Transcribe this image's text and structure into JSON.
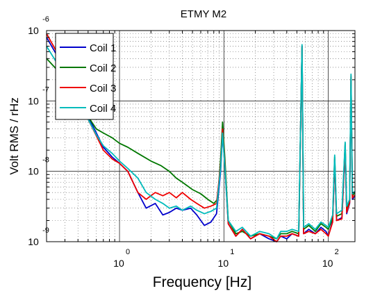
{
  "chart_data": {
    "type": "line",
    "title": "ETMY M2",
    "xlabel": "Frequency [Hz]",
    "ylabel": "Volt RMS / rHz",
    "x_scale": "log",
    "y_scale": "log",
    "xlim": [
      0.2,
      180
    ],
    "ylim": [
      1e-09,
      1e-06
    ],
    "grid": true,
    "legend": "top-left",
    "x_ticks": [
      {
        "value": 1,
        "base": "10",
        "exp": "0"
      },
      {
        "value": 10,
        "base": "10",
        "exp": "1"
      },
      {
        "value": 100,
        "base": "10",
        "exp": "2"
      }
    ],
    "y_ticks": [
      {
        "value": 1e-09,
        "base": "10",
        "exp": "-9"
      },
      {
        "value": 1e-08,
        "base": "10",
        "exp": "-8"
      },
      {
        "value": 1e-07,
        "base": "10",
        "exp": "-7"
      },
      {
        "value": 1e-06,
        "base": "10",
        "exp": "-6"
      }
    ],
    "series": [
      {
        "name": "Coil 1",
        "color": "#0000cc",
        "points": [
          [
            0.2,
            8e-07
          ],
          [
            0.25,
            4.5e-07
          ],
          [
            0.3,
            2.5e-07
          ],
          [
            0.4,
            1.2e-07
          ],
          [
            0.5,
            6e-08
          ],
          [
            0.6,
            3.5e-08
          ],
          [
            0.7,
            2.2e-08
          ],
          [
            0.85,
            1.6e-08
          ],
          [
            1.0,
            1.3e-08
          ],
          [
            1.2,
            1e-08
          ],
          [
            1.5,
            5e-09
          ],
          [
            1.8,
            3e-09
          ],
          [
            2.2,
            3.5e-09
          ],
          [
            2.6,
            2.4e-09
          ],
          [
            3.0,
            2.6e-09
          ],
          [
            3.5,
            3e-09
          ],
          [
            4.0,
            2.8e-09
          ],
          [
            4.8,
            3e-09
          ],
          [
            5.5,
            2.4e-09
          ],
          [
            6.5,
            1.7e-09
          ],
          [
            7.5,
            1.9e-09
          ],
          [
            8.5,
            2.5e-09
          ],
          [
            9.3,
            1e-08
          ],
          [
            9.7,
            3.5e-08
          ],
          [
            10.2,
            1.2e-08
          ],
          [
            11,
            1.8e-09
          ],
          [
            13,
            1.2e-09
          ],
          [
            15,
            1.5e-09
          ],
          [
            18,
            1.1e-09
          ],
          [
            22,
            1.3e-09
          ],
          [
            27,
            1.1e-09
          ],
          [
            32,
            1e-09
          ],
          [
            35,
            1.2e-09
          ],
          [
            40,
            1.1e-09
          ],
          [
            45,
            1.3e-09
          ],
          [
            52,
            1.2e-09
          ],
          [
            56,
            6e-07
          ],
          [
            58,
            1.3e-09
          ],
          [
            65,
            1.5e-09
          ],
          [
            75,
            1.3e-09
          ],
          [
            85,
            1.6e-09
          ],
          [
            95,
            1.4e-09
          ],
          [
            100,
            1.2e-09
          ],
          [
            110,
            2e-09
          ],
          [
            115,
            1.4e-08
          ],
          [
            120,
            2e-09
          ],
          [
            135,
            2.2e-09
          ],
          [
            145,
            2.1e-08
          ],
          [
            150,
            2.5e-09
          ],
          [
            160,
            3.5e-09
          ],
          [
            165,
            2e-07
          ],
          [
            170,
            4e-09
          ],
          [
            180,
            4.5e-09
          ]
        ]
      },
      {
        "name": "Coil 2",
        "color": "#007700",
        "points": [
          [
            0.2,
            4e-07
          ],
          [
            0.25,
            2.8e-07
          ],
          [
            0.3,
            1.8e-07
          ],
          [
            0.4,
            1e-07
          ],
          [
            0.5,
            6e-08
          ],
          [
            0.6,
            4e-08
          ],
          [
            0.7,
            3.5e-08
          ],
          [
            0.85,
            3e-08
          ],
          [
            1.0,
            2.5e-08
          ],
          [
            1.2,
            2.2e-08
          ],
          [
            1.5,
            1.8e-08
          ],
          [
            2.0,
            1.4e-08
          ],
          [
            2.5,
            1.2e-08
          ],
          [
            3.0,
            1e-08
          ],
          [
            3.5,
            8e-09
          ],
          [
            4.0,
            7e-09
          ],
          [
            5.0,
            5.5e-09
          ],
          [
            6.0,
            4.8e-09
          ],
          [
            7.0,
            4e-09
          ],
          [
            8.0,
            3.5e-09
          ],
          [
            8.7,
            4e-09
          ],
          [
            9.3,
            1.5e-08
          ],
          [
            9.7,
            5e-08
          ],
          [
            10.2,
            1.6e-08
          ],
          [
            11,
            2e-09
          ],
          [
            13,
            1.3e-09
          ],
          [
            15,
            1.4e-09
          ],
          [
            18,
            1.2e-09
          ],
          [
            22,
            1.3e-09
          ],
          [
            27,
            1.2e-09
          ],
          [
            32,
            1.1e-09
          ],
          [
            35,
            1.3e-09
          ],
          [
            40,
            1.3e-09
          ],
          [
            45,
            1.4e-09
          ],
          [
            52,
            1.3e-09
          ],
          [
            56,
            6e-07
          ],
          [
            58,
            1.5e-09
          ],
          [
            65,
            1.7e-09
          ],
          [
            75,
            1.4e-09
          ],
          [
            85,
            1.8e-09
          ],
          [
            95,
            1.6e-09
          ],
          [
            100,
            1.5e-09
          ],
          [
            110,
            2.2e-09
          ],
          [
            115,
            1.6e-08
          ],
          [
            120,
            2.3e-09
          ],
          [
            135,
            2.5e-09
          ],
          [
            145,
            2.5e-08
          ],
          [
            150,
            3e-09
          ],
          [
            160,
            3.8e-09
          ],
          [
            165,
            2.2e-07
          ],
          [
            170,
            4.5e-09
          ],
          [
            180,
            5e-09
          ]
        ]
      },
      {
        "name": "Coil 3",
        "color": "#ee0000",
        "points": [
          [
            0.2,
            9e-07
          ],
          [
            0.25,
            5e-07
          ],
          [
            0.3,
            2.5e-07
          ],
          [
            0.4,
            1.1e-07
          ],
          [
            0.5,
            5.5e-08
          ],
          [
            0.6,
            3.2e-08
          ],
          [
            0.7,
            2e-08
          ],
          [
            0.85,
            1.5e-08
          ],
          [
            1.0,
            1.3e-08
          ],
          [
            1.2,
            1e-08
          ],
          [
            1.5,
            5e-09
          ],
          [
            1.8,
            4e-09
          ],
          [
            2.2,
            5e-09
          ],
          [
            2.6,
            4.5e-09
          ],
          [
            3.0,
            5e-09
          ],
          [
            3.5,
            4.2e-09
          ],
          [
            4.0,
            5e-09
          ],
          [
            4.8,
            4e-09
          ],
          [
            5.5,
            3.5e-09
          ],
          [
            6.5,
            3e-09
          ],
          [
            7.5,
            3.2e-09
          ],
          [
            8.5,
            3.5e-09
          ],
          [
            9.3,
            1.2e-08
          ],
          [
            9.7,
            4e-08
          ],
          [
            10.2,
            1.3e-08
          ],
          [
            11,
            1.8e-09
          ],
          [
            13,
            1.2e-09
          ],
          [
            15,
            1.5e-09
          ],
          [
            18,
            1.1e-09
          ],
          [
            22,
            1.3e-09
          ],
          [
            27,
            1.2e-09
          ],
          [
            32,
            1e-09
          ],
          [
            35,
            1.2e-09
          ],
          [
            40,
            1.2e-09
          ],
          [
            45,
            1.3e-09
          ],
          [
            52,
            1.2e-09
          ],
          [
            56,
            6e-07
          ],
          [
            58,
            1.3e-09
          ],
          [
            65,
            1.4e-09
          ],
          [
            75,
            1.3e-09
          ],
          [
            85,
            1.5e-09
          ],
          [
            95,
            1.3e-09
          ],
          [
            100,
            1.2e-09
          ],
          [
            110,
            1.9e-09
          ],
          [
            115,
            1.5e-08
          ],
          [
            120,
            2e-09
          ],
          [
            135,
            2.1e-09
          ],
          [
            145,
            2.3e-08
          ],
          [
            150,
            2.6e-09
          ],
          [
            160,
            3.6e-09
          ],
          [
            165,
            2.3e-07
          ],
          [
            170,
            4.2e-09
          ],
          [
            180,
            4.6e-09
          ]
        ]
      },
      {
        "name": "Coil 4",
        "color": "#00bbbb",
        "points": [
          [
            0.2,
            6e-07
          ],
          [
            0.25,
            3.5e-07
          ],
          [
            0.3,
            2e-07
          ],
          [
            0.4,
            1e-07
          ],
          [
            0.5,
            5.5e-08
          ],
          [
            0.6,
            3.3e-08
          ],
          [
            0.7,
            2.3e-08
          ],
          [
            0.85,
            1.8e-08
          ],
          [
            1.0,
            1.4e-08
          ],
          [
            1.2,
            1.1e-08
          ],
          [
            1.5,
            8e-09
          ],
          [
            1.8,
            5e-09
          ],
          [
            2.2,
            4e-09
          ],
          [
            2.6,
            3.5e-09
          ],
          [
            3.0,
            3e-09
          ],
          [
            3.5,
            3.2e-09
          ],
          [
            4.0,
            2.8e-09
          ],
          [
            4.8,
            3.2e-09
          ],
          [
            5.5,
            2.8e-09
          ],
          [
            6.5,
            2.5e-09
          ],
          [
            7.5,
            2.7e-09
          ],
          [
            8.5,
            3e-09
          ],
          [
            9.3,
            1.1e-08
          ],
          [
            9.7,
            3.5e-08
          ],
          [
            10.2,
            1.2e-08
          ],
          [
            11,
            2e-09
          ],
          [
            13,
            1.4e-09
          ],
          [
            15,
            1.6e-09
          ],
          [
            18,
            1.2e-09
          ],
          [
            22,
            1.4e-09
          ],
          [
            27,
            1.3e-09
          ],
          [
            32,
            1.1e-09
          ],
          [
            35,
            1.4e-09
          ],
          [
            40,
            1.4e-09
          ],
          [
            45,
            1.5e-09
          ],
          [
            52,
            1.4e-09
          ],
          [
            56,
            6.3e-07
          ],
          [
            58,
            1.6e-09
          ],
          [
            65,
            1.8e-09
          ],
          [
            75,
            1.5e-09
          ],
          [
            85,
            1.9e-09
          ],
          [
            95,
            1.7e-09
          ],
          [
            100,
            1.6e-09
          ],
          [
            110,
            2.4e-09
          ],
          [
            115,
            1.7e-08
          ],
          [
            120,
            2.5e-09
          ],
          [
            135,
            2.8e-09
          ],
          [
            145,
            2.6e-08
          ],
          [
            150,
            3.2e-09
          ],
          [
            160,
            4e-09
          ],
          [
            165,
            2.4e-07
          ],
          [
            170,
            4.8e-09
          ],
          [
            180,
            5.2e-09
          ]
        ]
      }
    ]
  }
}
